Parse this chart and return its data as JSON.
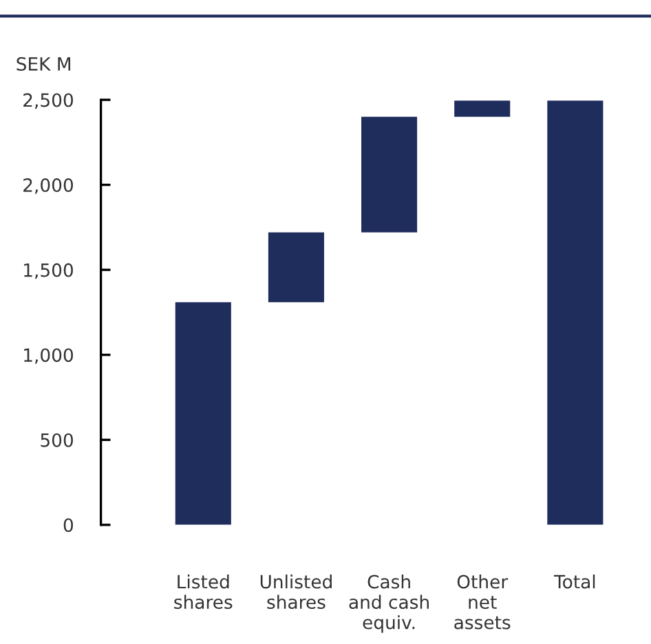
{
  "chart_data": {
    "type": "bar",
    "ylabel": "SEK M",
    "categories": [
      "Listed\nshares",
      "Unlisted\nshares",
      "Cash\nand cash\nequiv.",
      "Other\nnet\nassets",
      "Total"
    ],
    "values": [
      1310,
      410,
      680,
      95,
      2495
    ],
    "base": [
      0,
      1310,
      1720,
      2400,
      0
    ],
    "color": "#1f2d5c",
    "ylim": [
      0,
      2500
    ],
    "yticks": [
      {
        "value": 0,
        "label": "0"
      },
      {
        "value": 500,
        "label": "500"
      },
      {
        "value": 1000,
        "label": "1,000"
      },
      {
        "value": 1500,
        "label": "1,500"
      },
      {
        "value": 2000,
        "label": "2,000"
      },
      {
        "value": 2500,
        "label": "2,500"
      }
    ],
    "grid": false,
    "legend": false
  }
}
